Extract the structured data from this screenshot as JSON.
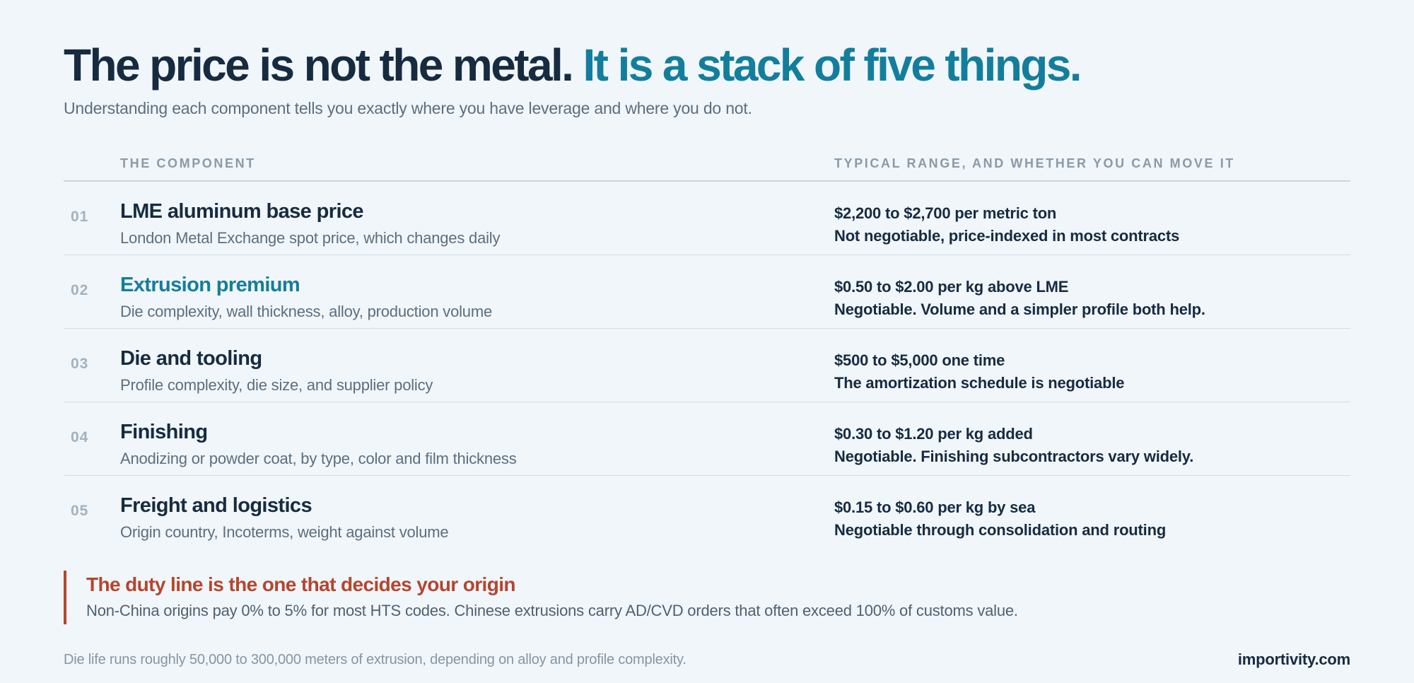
{
  "headline": {
    "main": "The price is not the metal.",
    "accent": "It is a stack of five things."
  },
  "subtitle": "Understanding each component tells you exactly where you have leverage and where you do not.",
  "table": {
    "col_component": "THE COMPONENT",
    "col_range": "TYPICAL RANGE, AND WHETHER YOU CAN MOVE IT",
    "rows": [
      {
        "num": "01",
        "name": "LME aluminum base price",
        "desc": "London Metal Exchange spot price, which changes daily",
        "range": "$2,200 to $2,700 per metric ton",
        "move": "Not negotiable, price-indexed in most contracts"
      },
      {
        "num": "02",
        "name": "Extrusion premium",
        "desc": "Die complexity, wall thickness, alloy, production volume",
        "range": "$0.50 to $2.00 per kg above LME",
        "move": "Negotiable. Volume and a simpler profile both help."
      },
      {
        "num": "03",
        "name": "Die and tooling",
        "desc": "Profile complexity, die size, and supplier policy",
        "range": "$500 to $5,000 one time",
        "move": "The amortization schedule is negotiable"
      },
      {
        "num": "04",
        "name": "Finishing",
        "desc": "Anodizing or powder coat, by type, color and film thickness",
        "range": "$0.30 to $1.20 per kg added",
        "move": "Negotiable. Finishing subcontractors vary widely."
      },
      {
        "num": "05",
        "name": "Freight and logistics",
        "desc": "Origin country, Incoterms, weight against volume",
        "range": "$0.15 to $0.60 per kg by sea",
        "move": "Negotiable through consolidation and routing"
      }
    ]
  },
  "callout": {
    "title": "The duty line is the one that decides your origin",
    "text": "Non-China origins pay 0% to 5% for most HTS codes. Chinese extrusions carry AD/CVD orders that often exceed 100% of customs value."
  },
  "footnote": "Die life runs roughly 50,000 to 300,000 meters of extrusion, depending on alloy and profile complexity.",
  "brand": "importivity.com",
  "colors": {
    "background": "#f0f6fa",
    "text_dark": "#172b40",
    "accent_teal": "#137e9c",
    "accent_red": "#b4462e",
    "muted": "#5c6e7e"
  }
}
